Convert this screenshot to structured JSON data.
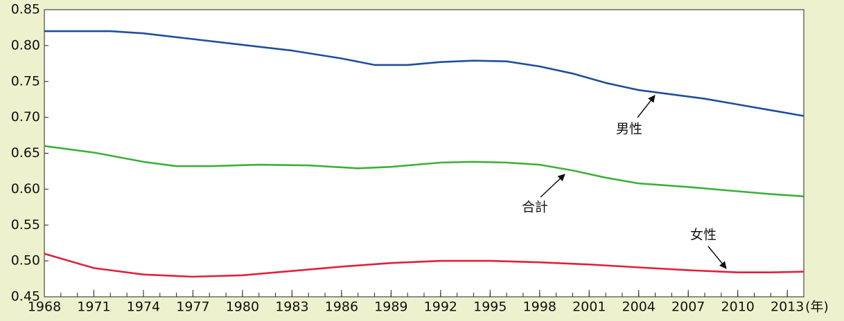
{
  "chart_data": {
    "type": "line",
    "x_unit_label": "(年)",
    "xlim": [
      1968,
      2014
    ],
    "ylim": [
      0.45,
      0.85
    ],
    "xticks": [
      1968,
      1971,
      1974,
      1977,
      1980,
      1983,
      1986,
      1989,
      1992,
      1995,
      1998,
      2001,
      2004,
      2007,
      2010,
      2013
    ],
    "xminorticks": [
      1968,
      1969,
      1970,
      1971,
      1972,
      1973,
      1974,
      1975,
      1976,
      1977,
      1978,
      1979,
      1980,
      1981,
      1982,
      1983,
      1984,
      1985,
      1986,
      1987,
      1988,
      1989,
      1990,
      1991,
      1992,
      1993,
      1994,
      1995,
      1996,
      1997,
      1998,
      1999,
      2000,
      2001,
      2002,
      2003,
      2004,
      2005,
      2006,
      2007,
      2008,
      2009,
      2010,
      2011,
      2012,
      2013,
      2014
    ],
    "yticks": [
      0.45,
      {
        "value": 0.5,
        "label": "0.50"
      },
      0.55,
      {
        "value": 0.6,
        "label": "0.60"
      },
      0.65,
      {
        "value": 0.7,
        "label": "0.70"
      },
      0.75,
      {
        "value": 0.8,
        "label": "0.80"
      },
      0.85
    ],
    "series": [
      {
        "name": "男性",
        "color": "#1f4e9c",
        "x": [
          1968,
          1972,
          1974,
          1977,
          1980,
          1983,
          1986,
          1988,
          1990,
          1992,
          1994,
          1996,
          1998,
          2000,
          2002,
          2004,
          2006,
          2008,
          2010,
          2012,
          2014
        ],
        "values": [
          0.82,
          0.82,
          0.817,
          0.809,
          0.801,
          0.793,
          0.782,
          0.773,
          0.773,
          0.777,
          0.779,
          0.778,
          0.771,
          0.761,
          0.748,
          0.738,
          0.732,
          0.726,
          0.718,
          0.71,
          0.702
        ]
      },
      {
        "name": "合計",
        "color": "#3daf3a",
        "x": [
          1968,
          1971,
          1974,
          1976,
          1978,
          1981,
          1984,
          1987,
          1989,
          1992,
          1994,
          1996,
          1998,
          2000,
          2002,
          2004,
          2007,
          2010,
          2012,
          2014
        ],
        "values": [
          0.66,
          0.651,
          0.638,
          0.632,
          0.632,
          0.634,
          0.633,
          0.629,
          0.631,
          0.637,
          0.638,
          0.637,
          0.634,
          0.626,
          0.616,
          0.608,
          0.603,
          0.597,
          0.593,
          0.59
        ]
      },
      {
        "name": "女性",
        "color": "#e0203c",
        "x": [
          1968,
          1971,
          1974,
          1977,
          1980,
          1983,
          1986,
          1989,
          1992,
          1995,
          1998,
          2001,
          2004,
          2007,
          2010,
          2012,
          2014
        ],
        "values": [
          0.51,
          0.49,
          0.481,
          0.478,
          0.48,
          0.486,
          0.492,
          0.497,
          0.5,
          0.5,
          0.498,
          0.495,
          0.491,
          0.487,
          0.484,
          0.484,
          0.485
        ]
      }
    ]
  }
}
